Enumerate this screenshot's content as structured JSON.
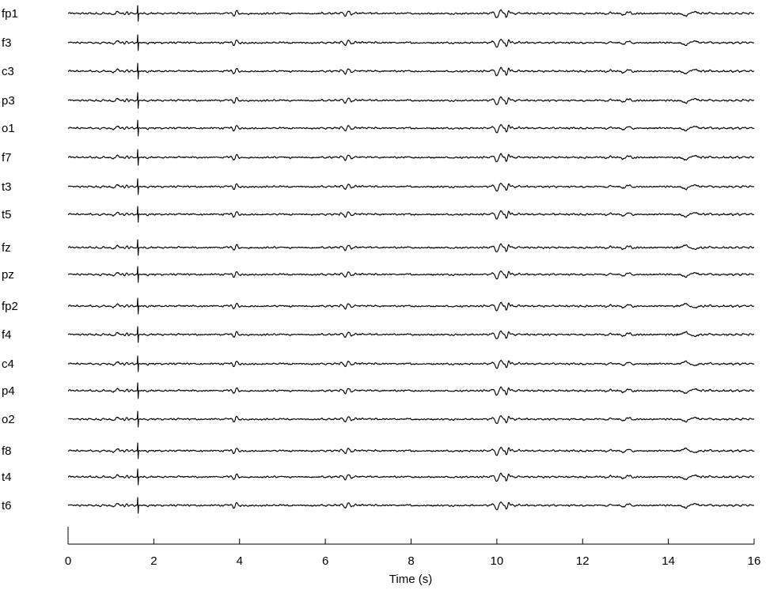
{
  "chart_data": {
    "type": "line",
    "title": "",
    "xlabel": "Time (s)",
    "ylabel": "",
    "xlim": [
      0,
      16
    ],
    "x_ticks": [
      "0",
      "2",
      "4",
      "6",
      "8",
      "10",
      "12",
      "14",
      "16"
    ],
    "grid": false,
    "duration_s": 16,
    "channels": [
      "fp1",
      "f3",
      "c3",
      "p3",
      "o1",
      "f7",
      "t3",
      "t5",
      "fz",
      "pz",
      "fp2",
      "f4",
      "c4",
      "p4",
      "o2",
      "f8",
      "t4",
      "t6"
    ],
    "events": [
      {
        "t": 1.1,
        "desc": "slow wave"
      },
      {
        "t": 1.62,
        "desc": "sharp spike"
      },
      {
        "t": 3.9,
        "desc": "burst"
      },
      {
        "t": 6.5,
        "desc": "burst"
      },
      {
        "t": 10.1,
        "desc": "large burst"
      },
      {
        "t": 13.0,
        "desc": "slow wave"
      },
      {
        "t": 14.5,
        "desc": "slow wave"
      }
    ],
    "colors": {
      "trace": "#000000",
      "background": "#ffffff"
    }
  }
}
